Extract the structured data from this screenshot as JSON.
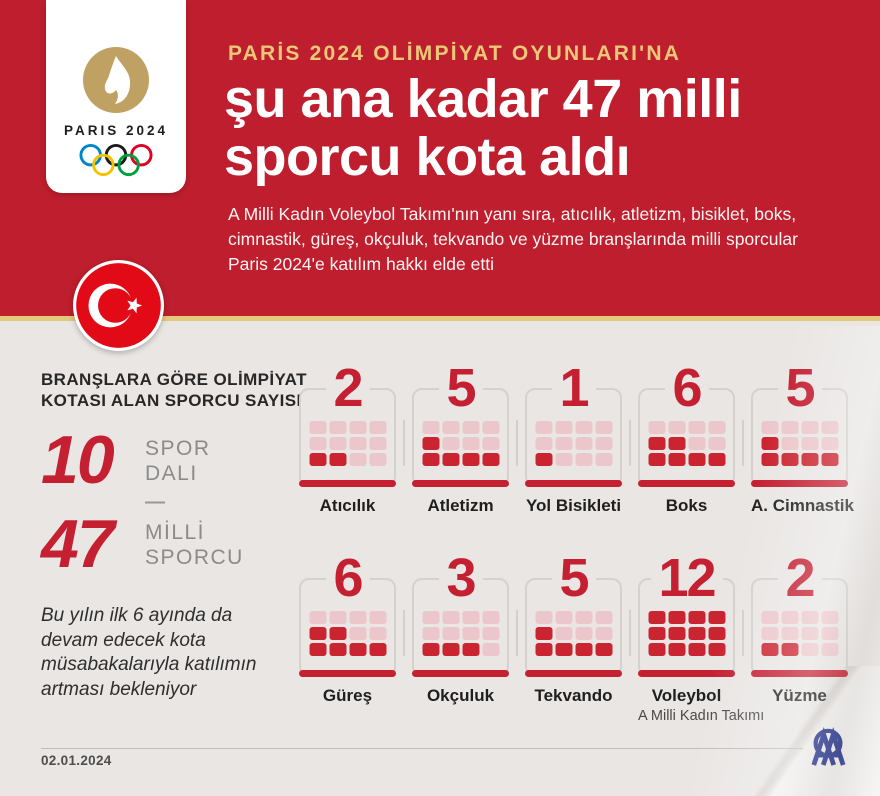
{
  "header": {
    "eyebrow": "PARİS 2024 OLİMPİYAT OYUNLARI'NA",
    "headline": "şu ana kadar 47 milli\nsporcu kota aldı",
    "subtext": "A Milli Kadın Voleybol Takımı'nın yanı sıra, atıcılık, atletizm, bisiklet, boks,\ncimnastik, güreş, okçuluk, tekvando ve yüzme branşlarında milli sporcular\nParis 2024'e katılım hakkı elde etti",
    "logo_wordmark": "PARIS 2024"
  },
  "stats": {
    "section_title": "BRANŞLARA GÖRE OLİMPİYAT\nKOTASI ALAN SPORCU SAYISI",
    "stat1": {
      "value": "10",
      "label": "SPOR\nDALI"
    },
    "divider": "—",
    "stat2": {
      "value": "47",
      "label": "MİLLİ\nSPORCU"
    },
    "note": "Bu yılın ilk 6 ayında da\ndevam edecek kota\nmüsabakalarıyla katılımın\nartması bekleniyor"
  },
  "sports": [
    {
      "label": "Atıcılık",
      "count": 2
    },
    {
      "label": "Atletizm",
      "count": 5
    },
    {
      "label": "Yol Bisikleti",
      "count": 1
    },
    {
      "label": "Boks",
      "count": 6
    },
    {
      "label": "A. Cimnastik",
      "count": 5
    },
    {
      "label": "Güreş",
      "count": 6
    },
    {
      "label": "Okçuluk",
      "count": 3
    },
    {
      "label": "Tekvando",
      "count": 5
    },
    {
      "label": "Voleybol",
      "count": 12,
      "sublabel": "A Milli Kadın Takımı"
    },
    {
      "label": "Yüzme",
      "count": 2
    }
  ],
  "footer": {
    "date": "02.01.2024"
  },
  "colors": {
    "header_red": "#be1e2d",
    "accent_red": "#c42032",
    "gold_line": "#e4c87c",
    "eyebrow_gold": "#eac878",
    "filled_cell": "#ca2430",
    "empty_cell": "#ebc7cb",
    "flag_red": "#e30a17",
    "agency_blue": "#2b3990",
    "background": "#e9e6e4"
  },
  "chart_data": {
    "type": "bar",
    "subtype": "waffle-unit-grid",
    "title": "BRANŞLARA GÖRE OLİMPİYAT KOTASI ALAN SPORCU SAYISI",
    "categories": [
      "Atıcılık",
      "Atletizm",
      "Yol Bisikleti",
      "Boks",
      "A. Cimnastik",
      "Güreş",
      "Okçuluk",
      "Tekvando",
      "Voleybol",
      "Yüzme"
    ],
    "values": [
      2,
      5,
      1,
      6,
      5,
      6,
      3,
      5,
      12,
      2
    ],
    "annotations": [
      "Voleybol: A Milli Kadın Takımı"
    ],
    "totals": {
      "spor_dali": 10,
      "milli_sporcu": 47
    },
    "unit_grid": {
      "columns": 4,
      "rows": 3,
      "capacity": 12,
      "fill_order": "bottom-left, left-to-right"
    },
    "legend_position": "none",
    "grid": false
  }
}
